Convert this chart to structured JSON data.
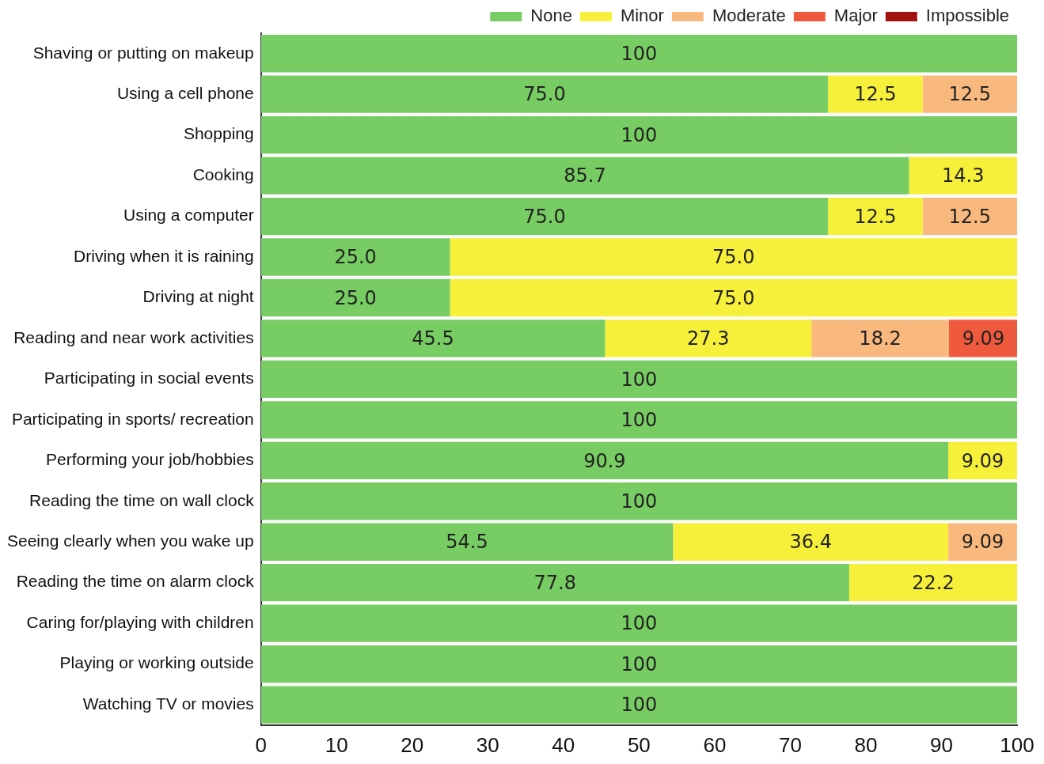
{
  "chart_data": {
    "type": "bar",
    "orientation": "horizontal",
    "stacked": true,
    "legend": "top",
    "grid": false,
    "categories": [
      "Shaving or putting on makeup",
      "Using a cell phone",
      "Shopping",
      "Cooking",
      "Using a computer",
      "Driving when it is raining",
      "Driving at night",
      "Reading and near work activities",
      "Participating in social events",
      "Participating in sports/ recreation",
      "Performing your job/hobbies",
      "Reading the time on wall clock",
      "Seeing clearly when you wake up",
      "Reading the time on alarm clock",
      "Caring for/playing with children",
      "Playing or working outside",
      "Watching TV or movies"
    ],
    "xlim": [
      0,
      100
    ],
    "xticks": [
      0,
      10,
      20,
      30,
      40,
      50,
      60,
      70,
      80,
      90,
      100
    ],
    "series": [
      {
        "name": "None",
        "color": "#78cc64",
        "values": [
          100,
          75,
          100,
          85.7,
          75,
          25,
          25,
          45.5,
          100,
          100,
          90.9,
          100,
          54.5,
          77.8,
          100,
          100,
          100
        ],
        "value_labels": [
          "100",
          "75.0",
          "100",
          "85.7",
          "75.0",
          "25.0",
          "25.0",
          "45.5",
          "100",
          "100",
          "90.9",
          "100",
          "54.5",
          "77.8",
          "100",
          "100",
          "100"
        ]
      },
      {
        "name": "Minor",
        "color": "#f7f03a",
        "values": [
          null,
          12.5,
          null,
          14.3,
          12.5,
          75,
          75,
          27.3,
          null,
          null,
          9.09,
          null,
          36.4,
          22.2,
          null,
          null,
          null
        ],
        "value_labels": [
          null,
          "12.5",
          null,
          "14.3",
          "12.5",
          "75.0",
          "75.0",
          "27.3",
          null,
          null,
          "9.09",
          null,
          "36.4",
          "22.2",
          null,
          null,
          null
        ]
      },
      {
        "name": "Moderate",
        "color": "#f8b87e",
        "values": [
          null,
          12.5,
          null,
          null,
          12.5,
          null,
          null,
          18.2,
          null,
          null,
          null,
          null,
          9.09,
          null,
          null,
          null,
          null
        ],
        "value_labels": [
          null,
          "12.5",
          null,
          null,
          "12.5",
          null,
          null,
          "18.2",
          null,
          null,
          null,
          null,
          "9.09",
          null,
          null,
          null,
          null
        ]
      },
      {
        "name": "Major",
        "color": "#ef5a3e",
        "values": [
          null,
          null,
          null,
          null,
          null,
          null,
          null,
          9.09,
          null,
          null,
          null,
          null,
          null,
          null,
          null,
          null,
          null
        ],
        "value_labels": [
          null,
          null,
          null,
          null,
          null,
          null,
          null,
          "9.09",
          null,
          null,
          null,
          null,
          null,
          null,
          null,
          null,
          null
        ]
      },
      {
        "name": "Impossible",
        "color": "#a3120e",
        "values": [
          null,
          null,
          null,
          null,
          null,
          null,
          null,
          null,
          null,
          null,
          null,
          null,
          null,
          null,
          null,
          null,
          null
        ]
      }
    ]
  }
}
